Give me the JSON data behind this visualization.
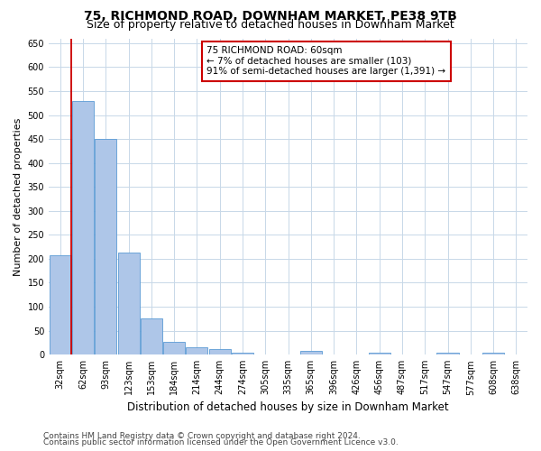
{
  "title": "75, RICHMOND ROAD, DOWNHAM MARKET, PE38 9TB",
  "subtitle": "Size of property relative to detached houses in Downham Market",
  "xlabel": "Distribution of detached houses by size in Downham Market",
  "ylabel": "Number of detached properties",
  "categories": [
    "32sqm",
    "62sqm",
    "93sqm",
    "123sqm",
    "153sqm",
    "184sqm",
    "214sqm",
    "244sqm",
    "274sqm",
    "305sqm",
    "335sqm",
    "365sqm",
    "396sqm",
    "426sqm",
    "456sqm",
    "487sqm",
    "517sqm",
    "547sqm",
    "577sqm",
    "608sqm",
    "638sqm"
  ],
  "values": [
    207,
    530,
    450,
    213,
    76,
    26,
    15,
    11,
    5,
    0,
    0,
    7,
    0,
    0,
    5,
    0,
    0,
    5,
    0,
    5,
    0
  ],
  "bar_color": "#aec6e8",
  "bar_edge_color": "#5b9bd5",
  "property_line_color": "#cc0000",
  "annotation_line1": "75 RICHMOND ROAD: 60sqm",
  "annotation_line2": "← 7% of detached houses are smaller (103)",
  "annotation_line3": "91% of semi-detached houses are larger (1,391) →",
  "annotation_box_color": "#cc0000",
  "ylim": [
    0,
    660
  ],
  "yticks": [
    0,
    50,
    100,
    150,
    200,
    250,
    300,
    350,
    400,
    450,
    500,
    550,
    600,
    650
  ],
  "footer_line1": "Contains HM Land Registry data © Crown copyright and database right 2024.",
  "footer_line2": "Contains public sector information licensed under the Open Government Licence v3.0.",
  "bg_color": "#ffffff",
  "grid_color": "#c8d8e8",
  "title_fontsize": 10,
  "subtitle_fontsize": 9,
  "tick_fontsize": 7,
  "ylabel_fontsize": 8,
  "xlabel_fontsize": 8.5,
  "annotation_fontsize": 7.5,
  "footer_fontsize": 6.5
}
